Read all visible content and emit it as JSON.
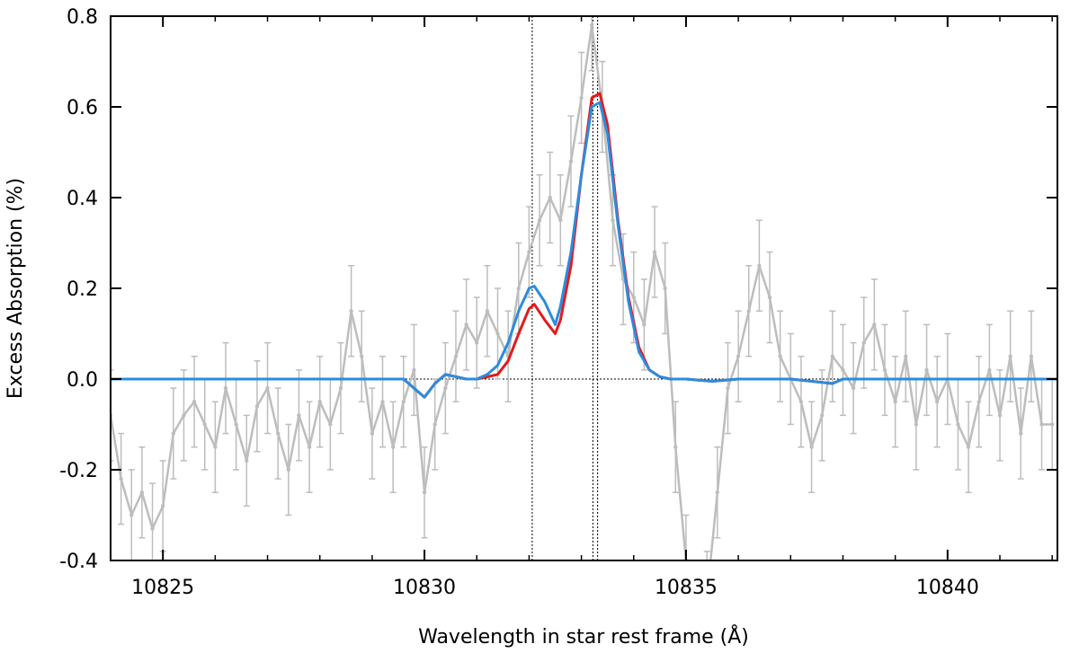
{
  "chart_data": {
    "type": "line",
    "title": "",
    "xlabel": "Wavelength in star rest frame (Å)",
    "ylabel": "Excess Absorption (%)",
    "xlim": [
      10824.0,
      10842.1
    ],
    "ylim": [
      -0.4,
      0.8
    ],
    "x_ticks": [
      10825,
      10830,
      10835,
      10840
    ],
    "x_tick_labels": [
      "10825",
      "10830",
      "10835",
      "10840"
    ],
    "y_ticks": [
      -0.4,
      -0.2,
      0.0,
      0.2,
      0.4,
      0.6,
      0.8
    ],
    "y_tick_labels": [
      "-0.4",
      "-0.2",
      "0.0",
      "0.2",
      "0.4",
      "0.6",
      "0.8"
    ],
    "grid": false,
    "reference_lines": {
      "vertical": [
        10832.06,
        10833.22,
        10833.31
      ],
      "horizontal": [
        0.0
      ]
    },
    "colors": {
      "data": "#bdbdbd",
      "model_red": "#e41a1c",
      "model_blue": "#2b8cdf",
      "reference": "#000000"
    },
    "series": [
      {
        "style": "errorbar-line",
        "color": "#bdbdbd",
        "x": [
          10824.0,
          10824.2,
          10824.4,
          10824.6,
          10824.8,
          10825.0,
          10825.2,
          10825.4,
          10825.6,
          10825.8,
          10826.0,
          10826.2,
          10826.4,
          10826.6,
          10826.8,
          10827.0,
          10827.2,
          10827.4,
          10827.6,
          10827.8,
          10828.0,
          10828.2,
          10828.4,
          10828.6,
          10828.8,
          10829.0,
          10829.2,
          10829.4,
          10829.6,
          10829.8,
          10830.0,
          10830.2,
          10830.4,
          10830.6,
          10830.8,
          10831.0,
          10831.2,
          10831.4,
          10831.6,
          10831.8,
          10832.0,
          10832.2,
          10832.4,
          10832.6,
          10832.8,
          10833.0,
          10833.2,
          10833.4,
          10833.6,
          10833.8,
          10834.0,
          10834.2,
          10834.4,
          10834.6,
          10834.8,
          10835.0,
          10835.2,
          10835.4,
          10835.6,
          10835.8,
          10836.0,
          10836.2,
          10836.4,
          10836.6,
          10836.8,
          10837.0,
          10837.2,
          10837.4,
          10837.6,
          10837.8,
          10838.0,
          10838.2,
          10838.4,
          10838.6,
          10838.8,
          10839.0,
          10839.2,
          10839.4,
          10839.6,
          10839.8,
          10840.0,
          10840.2,
          10840.4,
          10840.6,
          10840.8,
          10841.0,
          10841.2,
          10841.4,
          10841.6,
          10841.8,
          10842.0
        ],
        "y": [
          -0.08,
          -0.22,
          -0.3,
          -0.25,
          -0.33,
          -0.28,
          -0.12,
          -0.08,
          -0.05,
          -0.1,
          -0.15,
          -0.02,
          -0.1,
          -0.18,
          -0.06,
          -0.02,
          -0.12,
          -0.2,
          -0.08,
          -0.15,
          -0.05,
          -0.1,
          -0.02,
          0.15,
          0.05,
          -0.12,
          -0.05,
          -0.15,
          -0.05,
          0.02,
          -0.25,
          -0.1,
          -0.02,
          0.05,
          0.12,
          0.08,
          0.15,
          0.1,
          0.05,
          0.2,
          0.28,
          0.35,
          0.4,
          0.35,
          0.48,
          0.62,
          0.78,
          0.6,
          0.35,
          0.22,
          0.18,
          0.12,
          0.28,
          0.2,
          -0.15,
          -0.4,
          -0.55,
          -0.48,
          -0.25,
          -0.02,
          0.05,
          0.15,
          0.25,
          0.18,
          0.05,
          0.0,
          -0.05,
          -0.15,
          -0.08,
          0.05,
          0.02,
          -0.02,
          0.08,
          0.12,
          0.02,
          -0.05,
          0.05,
          -0.1,
          0.02,
          -0.05,
          0.0,
          -0.1,
          -0.15,
          -0.05,
          0.02,
          -0.08,
          0.05,
          -0.12,
          0.05,
          -0.1,
          -0.1
        ],
        "err": 0.1
      },
      {
        "style": "line",
        "color": "#e41a1c",
        "x": [
          10824.0,
          10829.6,
          10829.8,
          10830.0,
          10830.2,
          10830.4,
          10830.8,
          10831.0,
          10831.2,
          10831.4,
          10831.6,
          10831.8,
          10832.0,
          10832.1,
          10832.3,
          10832.5,
          10832.6,
          10832.8,
          10833.0,
          10833.2,
          10833.35,
          10833.5,
          10833.7,
          10833.9,
          10834.1,
          10834.3,
          10834.5,
          10834.7,
          10835.0,
          10835.5,
          10836.0,
          10837.0,
          10837.8,
          10838.0,
          10838.5,
          10842.1
        ],
        "y": [
          0.0,
          0.0,
          -0.02,
          -0.04,
          -0.01,
          0.01,
          0.0,
          0.0,
          0.005,
          0.01,
          0.04,
          0.1,
          0.155,
          0.165,
          0.13,
          0.1,
          0.13,
          0.25,
          0.45,
          0.62,
          0.63,
          0.56,
          0.35,
          0.18,
          0.07,
          0.02,
          0.005,
          0.0,
          0.0,
          -0.005,
          0.0,
          0.0,
          -0.01,
          0.0,
          0.0,
          0.0
        ]
      },
      {
        "style": "line",
        "color": "#2b8cdf",
        "x": [
          10824.0,
          10829.6,
          10829.8,
          10830.0,
          10830.2,
          10830.4,
          10830.8,
          10831.0,
          10831.2,
          10831.4,
          10831.6,
          10831.8,
          10832.0,
          10832.1,
          10832.3,
          10832.5,
          10832.6,
          10832.8,
          10833.0,
          10833.2,
          10833.35,
          10833.5,
          10833.7,
          10833.9,
          10834.1,
          10834.3,
          10834.5,
          10834.7,
          10835.0,
          10835.5,
          10836.0,
          10837.0,
          10837.8,
          10838.0,
          10838.5,
          10842.1
        ],
        "y": [
          0.0,
          0.0,
          -0.02,
          -0.04,
          -0.01,
          0.01,
          0.0,
          0.0,
          0.01,
          0.03,
          0.08,
          0.15,
          0.2,
          0.205,
          0.17,
          0.12,
          0.16,
          0.28,
          0.45,
          0.6,
          0.61,
          0.54,
          0.34,
          0.17,
          0.06,
          0.02,
          0.005,
          0.0,
          0.0,
          -0.005,
          0.0,
          0.0,
          -0.01,
          0.0,
          0.0,
          0.0
        ]
      }
    ]
  }
}
